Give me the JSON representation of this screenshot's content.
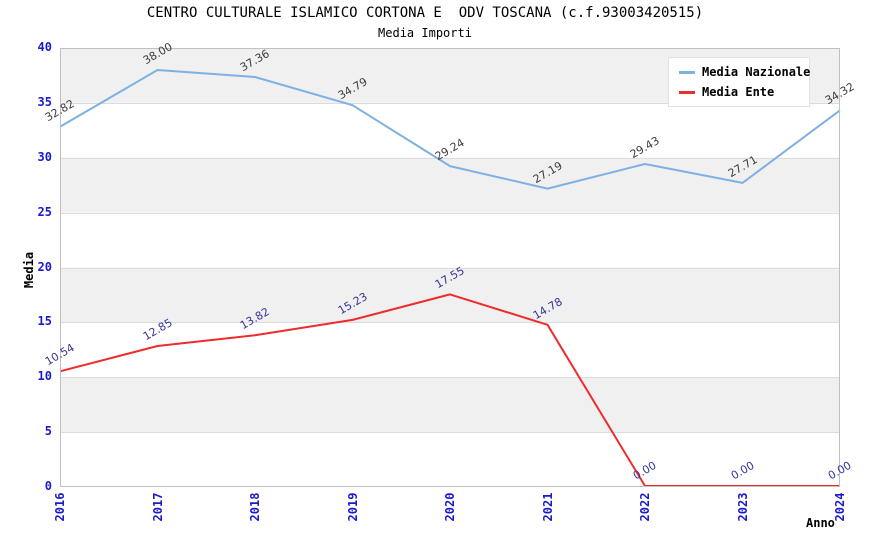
{
  "header": {
    "title": "CENTRO CULTURALE ISLAMICO CORTONA E  ODV TOSCANA (c.f.93003420515)",
    "subtitle": "Media Importi"
  },
  "chart_data": {
    "type": "line",
    "x_categories": [
      "2016",
      "2017",
      "2018",
      "2019",
      "2020",
      "2021",
      "2022",
      "2023",
      "2024"
    ],
    "xlabel": "Anno",
    "ylabel": "Media",
    "ylim": [
      0,
      40
    ],
    "ytick_step": 5,
    "grid": true,
    "legend_position": "top-right",
    "band_colors": [
      "#F0F0F0",
      "#FFFFFF"
    ],
    "border_color": "#C0C0C0",
    "gridline_color": "#DCDCDC",
    "tick_color": "#1A1ACD",
    "series": [
      {
        "name": "Media Nazionale",
        "color": "#7EB0E4",
        "label_color": "#3C3C3C",
        "values": [
          32.82,
          38.0,
          37.36,
          34.79,
          29.24,
          27.19,
          29.43,
          27.71,
          34.32
        ],
        "labels": [
          "32.82",
          "38.00",
          "37.36",
          "34.79",
          "29.24",
          "27.19",
          "29.43",
          "27.71",
          "34.32"
        ]
      },
      {
        "name": "Media Ente",
        "color": "#EE2C2C",
        "label_color": "#333399",
        "values": [
          10.54,
          12.85,
          13.82,
          15.23,
          17.55,
          14.78,
          0,
          0,
          0
        ],
        "labels": [
          "10.54",
          "12.85",
          "13.82",
          "15.23",
          "17.55",
          "14.78",
          "0.00",
          "0.00",
          "0.00"
        ]
      }
    ]
  }
}
